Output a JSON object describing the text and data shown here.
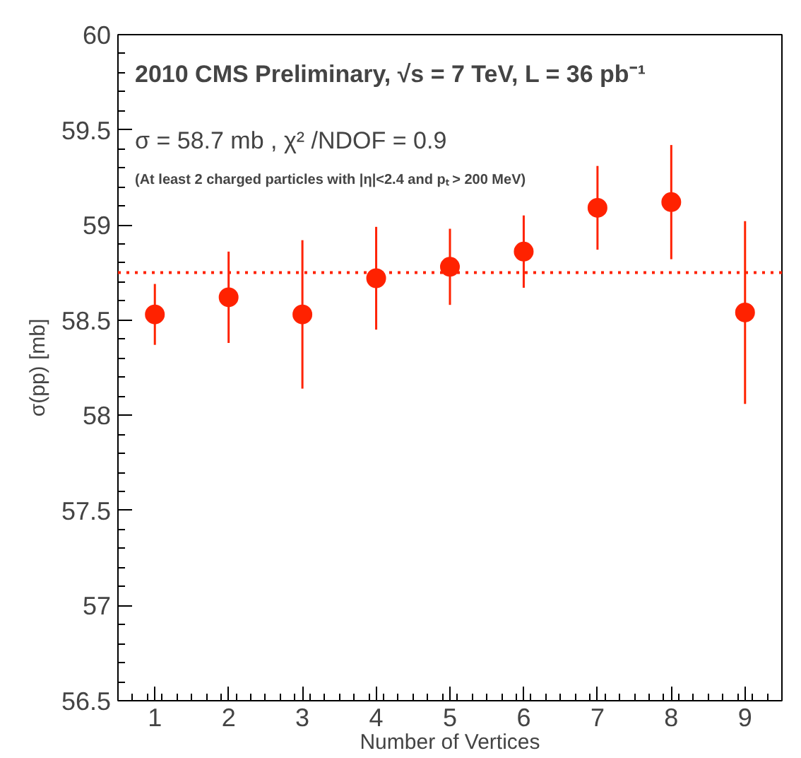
{
  "chart_data": {
    "type": "scatter",
    "xlabel": "Number of Vertices",
    "ylabel": "σ(pp) [mb]",
    "annotations": [
      "2010 CMS Preliminary, √s = 7 TeV, L = 36 pb⁻¹",
      "σ =  58.7 mb , χ² /NDOF = 0.9",
      "(At least 2 charged particles with |η|<2.4 and pₜ > 200 MeV)"
    ],
    "x": [
      1,
      2,
      3,
      4,
      5,
      6,
      7,
      8,
      9
    ],
    "series": [
      {
        "color": "#ff2200",
        "values": [
          58.53,
          58.62,
          58.53,
          58.72,
          58.78,
          58.86,
          59.09,
          59.12,
          58.54
        ],
        "errors": [
          0.16,
          0.24,
          0.39,
          0.27,
          0.2,
          0.19,
          0.22,
          0.3,
          0.48
        ]
      }
    ],
    "xlim": [
      0.5,
      9.5
    ],
    "ylim": [
      56.5,
      60
    ],
    "xticks": [
      1,
      2,
      3,
      4,
      5,
      6,
      7,
      8,
      9
    ],
    "yticks": [
      {
        "value": 56.5,
        "label": "56.5"
      },
      {
        "value": 57,
        "label": "57"
      },
      {
        "value": 57.5,
        "label": "57.5"
      },
      {
        "value": 58,
        "label": "58"
      },
      {
        "value": 58.5,
        "label": "58.5"
      },
      {
        "value": 59,
        "label": "59"
      },
      {
        "value": 59.5,
        "label": "59.5"
      },
      {
        "value": 60,
        "label": "60"
      }
    ],
    "ref_lines": [
      {
        "axis": "y",
        "value": 58.75,
        "color": "#ff2200",
        "line_style": "dotted"
      }
    ],
    "marker": "circle",
    "grid": false
  }
}
